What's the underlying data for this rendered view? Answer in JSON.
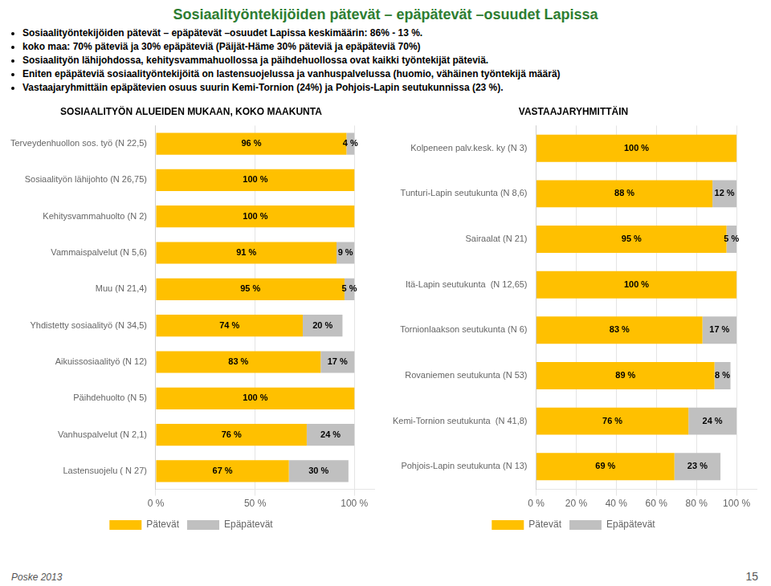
{
  "title": "Sosiaalityöntekijöiden pätevät – epäpätevät –osuudet Lapissa",
  "annotations": [
    "Sosiaalityöntekijöiden pätevät – epäpätevät –osuudet Lapissa keskimäärin: 86% - 13 %.",
    "koko maa: 70% päteviä ja 30% epäpäteviä (Päijät-Häme  30% päteviä ja epäpäteviä 70%)",
    "Sosiaalityön lähijohdossa, kehitysvammahuollossa ja päihdehuollossa ovat kaikki työntekijät päteviä.",
    "Eniten epäpäteviä sosiaalityöntekijöitä on lastensuojelussa ja vanhuspalvelussa (huomio, vähäinen työntekijä määrä)",
    "Vastaajaryhmittäin epäpätevien osuus suurin Kemi-Tornion (24%) ja Pohjois-Lapin seutukunnissa (23 %)."
  ],
  "footer": [
    "Poske 2013",
    "15"
  ],
  "chart_data": [
    {
      "type": "bar",
      "title": "SOSIAALITYÖN ALUEIDEN MUKAAN, KOKO MAAKUNTA",
      "orientation": "horizontal",
      "stacked": true,
      "data_labels": true,
      "grid": "x",
      "legend": "bottom",
      "categories": [
        "Terveydenhuollon sos. työ (N 22,5)",
        "Sosiaalityön lähijohto (N 26,75)",
        "Kehitysvammahuolto (N 2)",
        "Vammaispalvelut (N 5,6)",
        "Muu (N 21,4)",
        "Yhdistetty sosiaalityö (N 34,5)",
        "Aikuissosiaalityö (N 12)",
        "Päihdehuolto (N 5)",
        "Vanhuspalvelut (N 2,1)",
        "Lastensuojelu ( N 27)"
      ],
      "series": [
        {
          "name": "Pätevät",
          "color": "#FFC000",
          "values": [
            96,
            100,
            100,
            91,
            95,
            74,
            83,
            100,
            76,
            67
          ],
          "value_labels": [
            "96 %",
            "100 %",
            "100 %",
            "91 %",
            "95 %",
            "74 %",
            "83 %",
            "100 %",
            "76 %",
            "67 %"
          ]
        },
        {
          "name": "Epäpätevät",
          "color": "#C0C0C0",
          "values": [
            4,
            0,
            0,
            9,
            5,
            20,
            17,
            0,
            24,
            30
          ],
          "value_labels": [
            "4 %",
            null,
            null,
            "9 %",
            "5 %",
            "20 %",
            "17 %",
            null,
            "24 %",
            "30 %"
          ]
        }
      ],
      "xlim": [
        0,
        110
      ],
      "xticks": [
        {
          "value": 0,
          "label": "0 %"
        },
        {
          "value": 50,
          "label": "50 %"
        },
        {
          "value": 100,
          "label": "100 %"
        }
      ]
    },
    {
      "type": "bar",
      "title": "VASTAAJARYHMITTÄIN",
      "orientation": "horizontal",
      "stacked": true,
      "data_labels": true,
      "grid": "x",
      "legend": "bottom",
      "categories": [
        "Kolpeneen palv.kesk. ky (N 3)",
        "Tunturi-Lapin seutukunta (N 8,6)",
        "Sairaalat (N 21)",
        "Itä-Lapin seutukunta  (N 12,65)",
        "Tornionlaakson seutukunta (N 6)",
        "Rovaniemen seutukunta (N 53)",
        "Kemi-Tornion seutukunta  (N 41,8)",
        "Pohjois-Lapin seutukunta (N 13)"
      ],
      "series": [
        {
          "name": "Pätevät",
          "color": "#FFC000",
          "values": [
            100,
            88,
            95,
            100,
            83,
            89,
            76,
            69
          ],
          "value_labels": [
            "100 %",
            "88 %",
            "95 %",
            "100 %",
            "83 %",
            "89 %",
            "76 %",
            "69 %"
          ]
        },
        {
          "name": "Epäpätevät",
          "color": "#C0C0C0",
          "values": [
            0,
            12,
            5,
            0,
            17,
            8,
            24,
            23
          ],
          "value_labels": [
            null,
            "12 %",
            "5 %",
            null,
            "17 %",
            "8 %",
            "24 %",
            "23 %"
          ]
        }
      ],
      "xlim": [
        0,
        110
      ],
      "xticks": [
        {
          "value": 0,
          "label": "0 %"
        },
        {
          "value": 20,
          "label": "20 %"
        },
        {
          "value": 40,
          "label": "40 %"
        },
        {
          "value": 60,
          "label": "60 %"
        },
        {
          "value": 80,
          "label": "80 %"
        },
        {
          "value": 100,
          "label": "100 %"
        }
      ]
    }
  ]
}
